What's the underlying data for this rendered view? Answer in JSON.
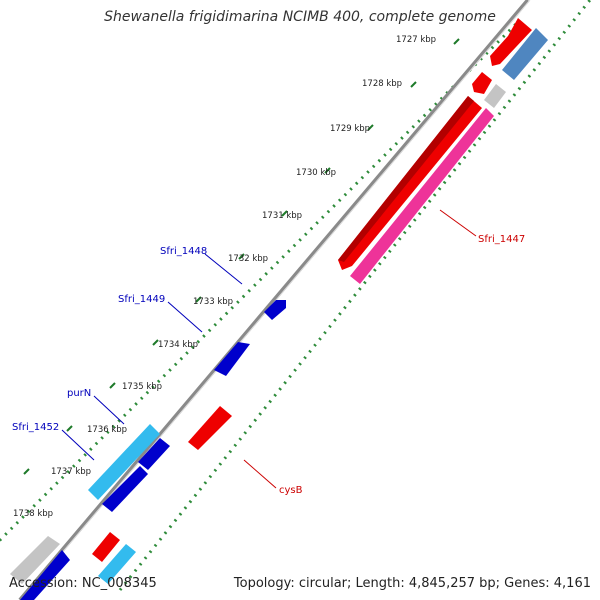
{
  "title": "Shewanella frigidimarina NCIMB 400, complete genome",
  "footer": {
    "accession": "Accession: NC_008345",
    "summary": "Topology: circular; Length: 4,845,257 bp; Genes: 4,161"
  },
  "tick_labels": [
    "1727 kbp",
    "1728 kbp",
    "1729 kbp",
    "1730 kbp",
    "1731 kbp",
    "1732 kbp",
    "1733 kbp",
    "1734 kbp",
    "1735 kbp",
    "1736 kbp",
    "1737 kbp",
    "1738 kbp"
  ],
  "gene_labels": {
    "sfri_1447": "Sfri_1447",
    "sfri_1448": "Sfri_1448",
    "sfri_1449": "Sfri_1449",
    "purN": "purN",
    "sfri_1452": "Sfri_1452",
    "cysB": "cysB"
  },
  "colors": {
    "backbone": "#8a8a8a",
    "gc_dots": "#2e8b3a",
    "red": "#ee0000",
    "pink": "#ee3399",
    "blue": "#0000cc",
    "cyan": "#33bbee",
    "steel": "#4f86c0",
    "gray": "#c4c4c4",
    "label_blue": "#0000bb",
    "label_red": "#cc0000"
  }
}
